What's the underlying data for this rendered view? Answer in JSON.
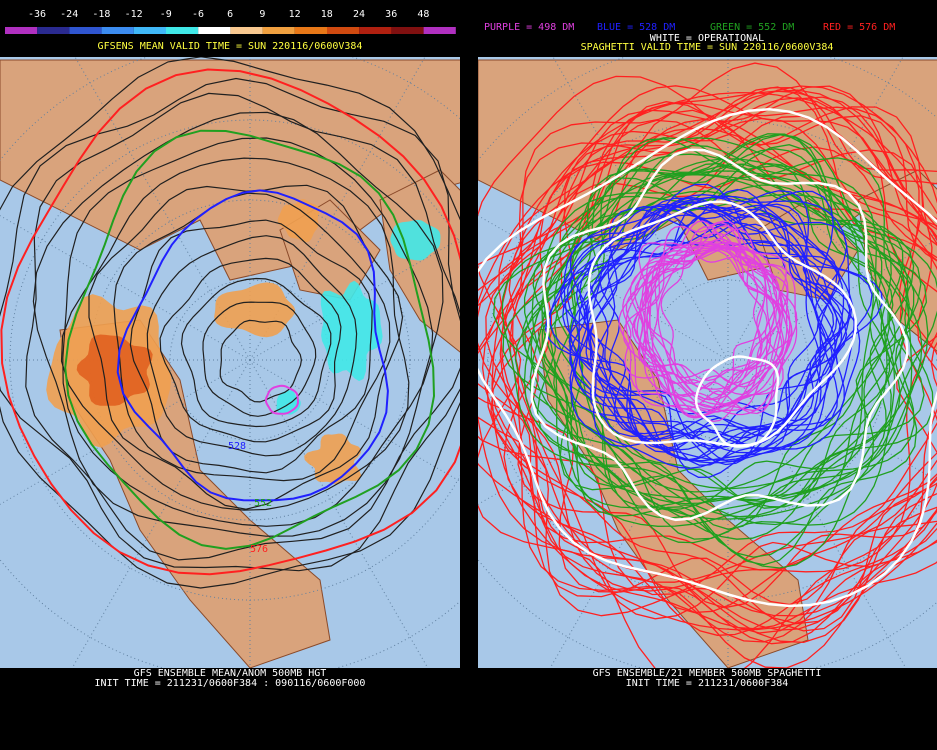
{
  "left_panel": {
    "colorbar_labels": [
      "-36",
      "-24",
      "-18",
      "-12",
      "-9",
      "-6",
      "6",
      "9",
      "12",
      "18",
      "24",
      "36",
      "48"
    ],
    "colorbar_colors": [
      "#b030c0",
      "#2a2a90",
      "#2f55d0",
      "#3c8cf0",
      "#40b8f8",
      "#40e8e8",
      "#ffffff",
      "#f8c890",
      "#f0a040",
      "#e87818",
      "#d04a10",
      "#b02010",
      "#801010",
      "#b030c0"
    ],
    "title": "GFSENS MEAN VALID TIME = SUN 220116/0600V384",
    "contour_labels": [
      "528",
      "552",
      "576"
    ],
    "footer": [
      "GFS ENSEMBLE MEAN/ANOM 500MB HGT",
      "INIT TIME = 211231/0600F384 : 090116/0600F000"
    ]
  },
  "right_panel": {
    "legend": [
      {
        "text": "PURPLE = 498 DM",
        "color": "#e040e0"
      },
      {
        "text": "BLUE = 528 DM",
        "color": "#2020ff"
      },
      {
        "text": "GREEN = 552 DM",
        "color": "#20a020"
      },
      {
        "text": "RED = 576 DM",
        "color": "#ff2020"
      }
    ],
    "operational_label": "WHITE = OPERATIONAL",
    "title": "SPAGHETTI VALID TIME = SUN 220116/0600V384",
    "footer": [
      "GFS ENSEMBLE/21 MEMBER 500MB SPAGHETTI",
      "INIT TIME = 211231/0600F384"
    ]
  }
}
